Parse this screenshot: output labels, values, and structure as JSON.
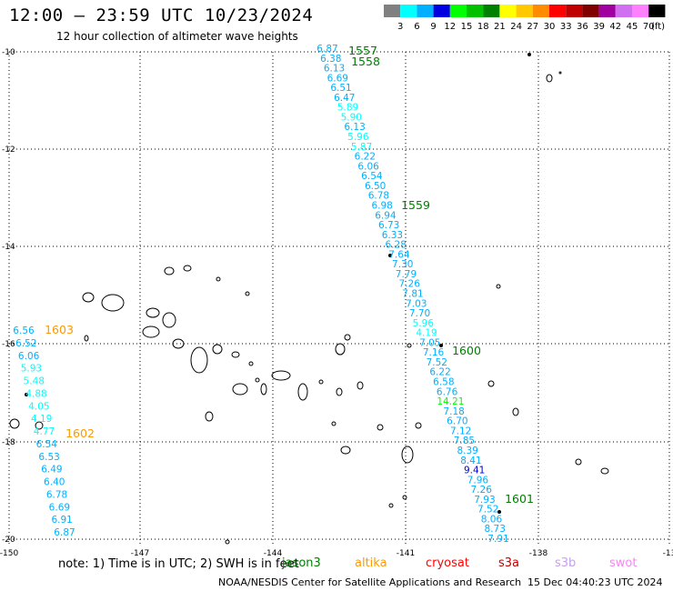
{
  "title": "12:00 — 23:59 UTC 10/23/2024",
  "subtitle": "12 hour collection of altimeter wave heights",
  "legend": {
    "unit": "(ft)",
    "bins": [
      {
        "label": "3",
        "color": "#808080"
      },
      {
        "label": "6",
        "color": "#00ffff"
      },
      {
        "label": "9",
        "color": "#00b0ff"
      },
      {
        "label": "12",
        "color": "#0000e0"
      },
      {
        "label": "15",
        "color": "#00ff00"
      },
      {
        "label": "18",
        "color": "#00c000"
      },
      {
        "label": "21",
        "color": "#008000"
      },
      {
        "label": "24",
        "color": "#ffff00"
      },
      {
        "label": "27",
        "color": "#ffc800"
      },
      {
        "label": "30",
        "color": "#ff8c00"
      },
      {
        "label": "33",
        "color": "#ff0000"
      },
      {
        "label": "36",
        "color": "#c00000"
      },
      {
        "label": "39",
        "color": "#800000"
      },
      {
        "label": "42",
        "color": "#a000a0"
      },
      {
        "label": "45",
        "color": "#d070f0"
      },
      {
        "label": "70",
        "color": "#ff80ff"
      },
      {
        "label": "",
        "color": "#000000"
      }
    ]
  },
  "axes": {
    "lat_labels": [
      "-10",
      "-12",
      "-14",
      "-16",
      "-18",
      "-20"
    ],
    "lon_labels": [
      "-150",
      "-147",
      "-144",
      "-141",
      "-138",
      "-13"
    ]
  },
  "tracks": [
    {
      "times": [
        {
          "label": "1557",
          "color": "#008000"
        },
        {
          "label": "1558",
          "color": "#008000"
        },
        {
          "label": "1559",
          "color": "#008000"
        },
        {
          "label": "1600",
          "color": "#008000"
        },
        {
          "label": "1601",
          "color": "#008000"
        }
      ],
      "values": [
        "6.87",
        "6.38",
        "6.13",
        "6.69",
        "6.51",
        "6.47",
        "5.89",
        "5.90",
        "6.13",
        "5.96",
        "5.87",
        "6.22",
        "6.06",
        "6.54",
        "6.50",
        "6.78",
        "6.98",
        "6.94",
        "6.73",
        "6.33",
        "6.28",
        "7.64",
        "7.30",
        "7.79",
        "7.26",
        "7.81",
        "7.03",
        "7.70",
        "5.96",
        "4.19",
        "7.05",
        "7.16",
        "7.52",
        "6.22",
        "6.58",
        "6.76",
        "14.21",
        "7.18",
        "6.70",
        "7.12",
        "7.85",
        "8.39",
        "8.41",
        "9.41",
        "7.96",
        "7.26",
        "7.93",
        "7.52",
        "8.06",
        "8.73",
        "7.91"
      ]
    },
    {
      "times": [
        {
          "label": "1603",
          "color": "#ff9900"
        },
        {
          "label": "1602",
          "color": "#ff9900"
        }
      ],
      "values": [
        "6.56",
        "6.52",
        "6.06",
        "5.93",
        "5.48",
        "4.88",
        "4.05",
        "4.19",
        "4.77",
        "6.54",
        "6.53",
        "6.49",
        "6.40",
        "6.78",
        "6.69",
        "6.91",
        "6.87"
      ]
    }
  ],
  "note": "note:  1) Time is in UTC;  2) SWH is in feet",
  "satellites": [
    {
      "label": "jason3",
      "color": "#008000"
    },
    {
      "label": "altika",
      "color": "#ff9900"
    },
    {
      "label": "cryosat",
      "color": "#ff0000"
    },
    {
      "label": "s3a",
      "color": "#c00000"
    },
    {
      "label": "s3b",
      "color": "#c8a0f0"
    },
    {
      "label": "swot",
      "color": "#ff80ff"
    }
  ],
  "footer": "NOAA/NESDIS Center for Satellite Applications and Research",
  "footer_time": "15 Dec 04:40:23 UTC 2024"
}
